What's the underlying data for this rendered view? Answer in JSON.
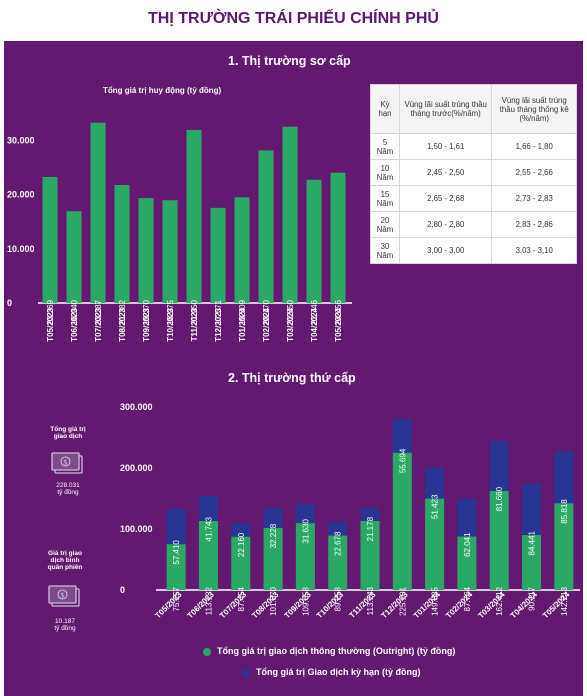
{
  "page_title": "THỊ TRƯỜNG TRÁI PHIẾU CHÍNH PHỦ",
  "colors": {
    "bar_green": "#2ba865",
    "bar_navy": "#283593",
    "panel_bg": "#63196f"
  },
  "primary": {
    "section_title": "1. Thị trường sơ cấp",
    "chart_subtitle": "Tổng giá trị huy động (tỷ đồng)"
  },
  "rate_table": {
    "headers": [
      "Kỳ hạn",
      "Vùng lãi suất trúng thầu tháng trước(%/năm)",
      "Vùng lãi suất trúng thầu tháng thống kê (%/năm)"
    ],
    "rows": [
      [
        "5 Năm",
        "1,50 - 1,61",
        "1,66 - 1,80"
      ],
      [
        "10 Năm",
        "2,45 - 2,50",
        "2,55 - 2,66"
      ],
      [
        "15 Năm",
        "2,65 - 2,68",
        "2,73 - 2,83"
      ],
      [
        "20 Năm",
        "2,80 - 2,80",
        "2,83 - 2,86"
      ],
      [
        "30 Năm",
        "3,00 - 3,00",
        "3,03 - 3,10"
      ]
    ]
  },
  "secondary": {
    "section_title": "2. Thị trường thứ cấp",
    "side_blocks": [
      {
        "label_lines": [
          "Tổng giá trị",
          "giao dịch"
        ],
        "icon": "money-icon",
        "value_lines": [
          "228.031",
          "tỷ đồng"
        ]
      },
      {
        "label_lines": [
          "Giá trị giao",
          "dịch bình",
          "quân phiên"
        ],
        "icon": "money-icon",
        "value_lines": [
          "10.187",
          "tỷ đồng"
        ]
      }
    ],
    "legend": [
      "Tổng giá trị giao dịch thông thường (Outright) (tỷ đồng)",
      "Tổng giá trị Giao dịch kỳ hạn (tỷ đồng)"
    ]
  },
  "chart_data": [
    {
      "type": "bar",
      "title": "Tổng giá trị huy động (tỷ đồng)",
      "categories": [
        "T05/2023",
        "T06/2023",
        "T07/2023",
        "T08/2023",
        "T09/2023",
        "T10/2023",
        "T11/2023",
        "T12/2023",
        "T01/2024",
        "T02/2024",
        "T03/2024",
        "T04/2024",
        "T05/2024"
      ],
      "values": [
        23269,
        16940,
        33287,
        21782,
        19370,
        18975,
        31950,
        17571,
        19509,
        28170,
        32550,
        22746,
        24056
      ],
      "value_labels": [
        "23.269",
        "16.940",
        "33.287",
        "21.782",
        "19.370",
        "18.975",
        "31.950",
        "17.571",
        "19.509",
        "28.170",
        "32.550",
        "22.746",
        "24.056"
      ],
      "yticks": [
        "0",
        "10.000",
        "20.000",
        "30.000"
      ],
      "ylim": [
        0,
        36000
      ],
      "grid": false
    },
    {
      "type": "bar",
      "stacked": true,
      "categories": [
        "T05/2023",
        "T06/2023",
        "T07/2023",
        "T08/2023",
        "T09/2023",
        "T10/2023",
        "T11/2023",
        "T12/2023",
        "T01/2024",
        "T02/2024",
        "T03/2024",
        "T04/2024",
        "T05/2024"
      ],
      "series": [
        {
          "name": "Tổng giá trị giao dịch thông thường (Outright) (tỷ đồng)",
          "values": [
            75157,
            113132,
            87454,
            101870,
            109658,
            89258,
            113143,
            225101,
            149885,
            87764,
            162412,
            90117,
            142213
          ],
          "value_labels": [
            "75.157",
            "113.132",
            "87.454",
            "101.870",
            "109.658",
            "89.258",
            "113.143",
            "225.101",
            "149.885",
            "87.764",
            "162.412",
            "90.117",
            "142.213"
          ]
        },
        {
          "name": "Tổng giá trị Giao dịch kỳ hạn (tỷ đồng)",
          "values": [
            57410,
            41743,
            22160,
            32228,
            31630,
            22678,
            21178,
            55694,
            51423,
            62041,
            81660,
            84441,
            85818
          ],
          "value_labels": [
            "57.410",
            "41.743",
            "22.160",
            "32.228",
            "31.630",
            "22.678",
            "21.178",
            "55.694",
            "51.423",
            "62.041",
            "81.660",
            "84.441",
            "85.818"
          ]
        }
      ],
      "yticks": [
        "0",
        "100.000",
        "200.000",
        "300.000"
      ],
      "ylim": [
        0,
        300000
      ],
      "grid": false
    }
  ]
}
